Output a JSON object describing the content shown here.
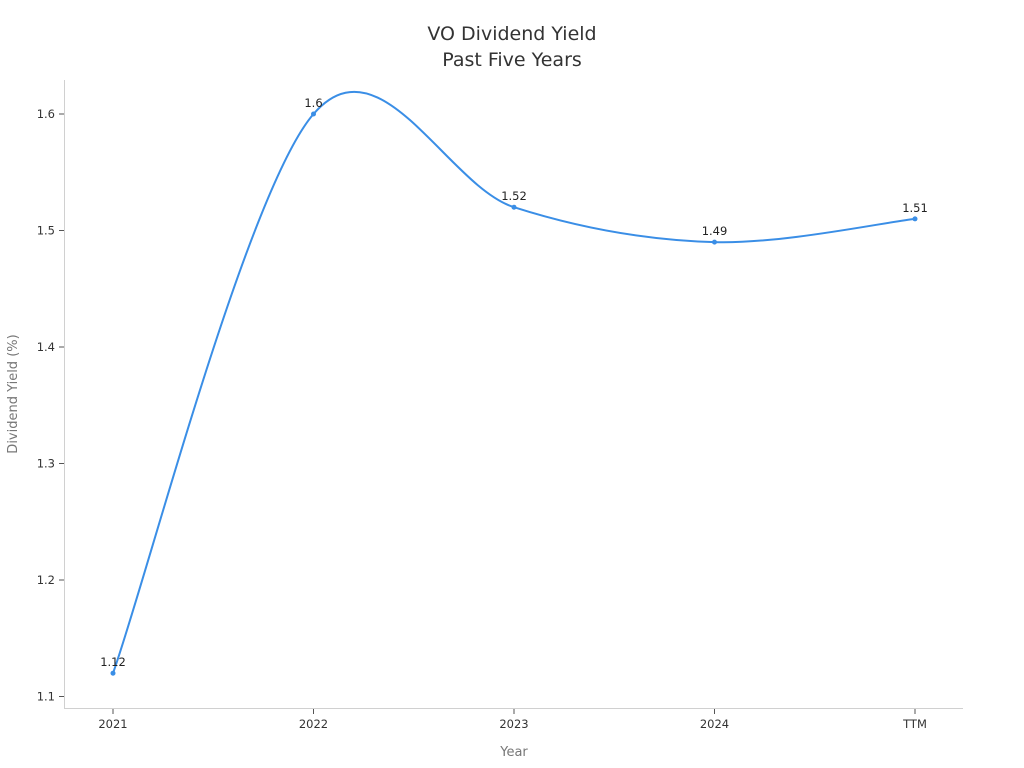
{
  "chart_data": {
    "type": "line",
    "title": "VO Dividend Yield",
    "subtitle": "Past Five Years",
    "xlabel": "Year",
    "ylabel": "Dividend Yield (%)",
    "categories": [
      "2021",
      "2022",
      "2023",
      "2024",
      "TTM"
    ],
    "values": [
      1.12,
      1.6,
      1.52,
      1.49,
      1.51
    ],
    "data_labels": [
      "1.12",
      "1.6",
      "1.52",
      "1.49",
      "1.51"
    ],
    "yticks": [
      1.1,
      1.2,
      1.3,
      1.4,
      1.5,
      1.6
    ],
    "ytick_labels": [
      "1.1",
      "1.2",
      "1.3",
      "1.4",
      "1.5",
      "1.6"
    ],
    "ylim": [
      1.09,
      1.63
    ],
    "grid": false,
    "legend": "none",
    "smooth": true,
    "markers": true,
    "line_color": "#3a8ee6"
  }
}
